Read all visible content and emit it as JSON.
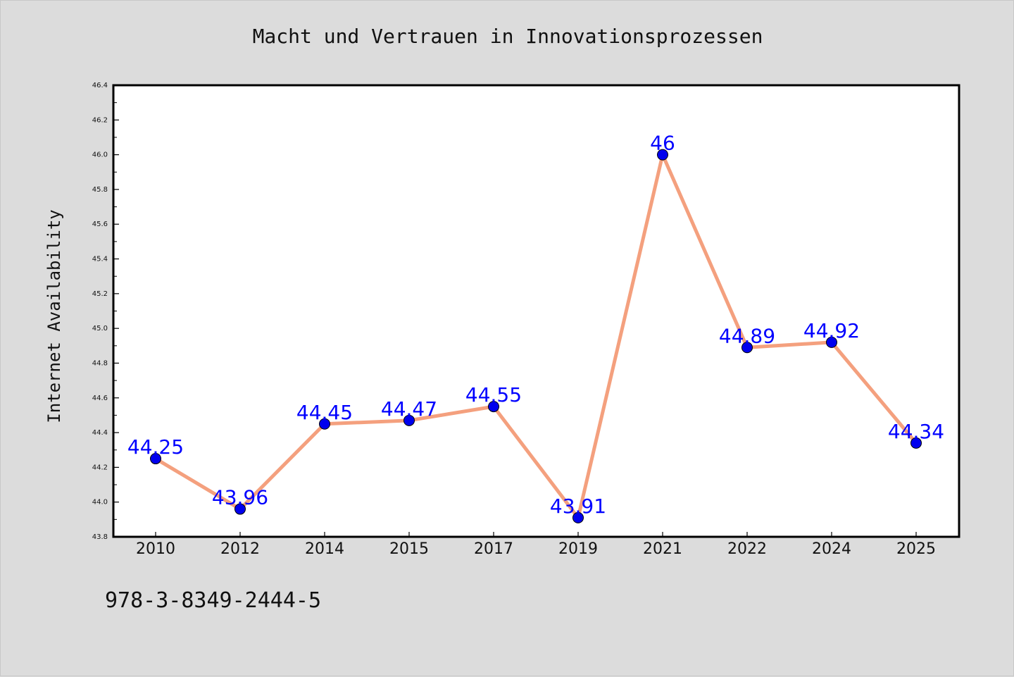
{
  "chart_data": {
    "type": "line",
    "title": "Macht und Vertrauen in Innovationsprozessen",
    "xlabel": "",
    "ylabel": "Internet Availability",
    "categories": [
      "2010",
      "2012",
      "2014",
      "2015",
      "2017",
      "2019",
      "2021",
      "2022",
      "2024",
      "2025"
    ],
    "series": [
      {
        "values": [
          44.25,
          43.96,
          44.45,
          44.47,
          44.55,
          43.91,
          46,
          44.89,
          44.92,
          44.34
        ],
        "labels": [
          "44.25",
          "43.96",
          "44.45",
          "44.47",
          "44.55",
          "43.91",
          "46",
          "44.89",
          "44.92",
          "44.34"
        ]
      }
    ],
    "ylim": [
      43.8,
      46.4
    ],
    "yticks": [
      "43.8",
      "44.0",
      "44.2",
      "44.4",
      "44.6",
      "44.8",
      "45.0",
      "45.2",
      "45.4",
      "45.6",
      "45.8",
      "46.0",
      "46.2",
      "46.4"
    ],
    "grid": false,
    "colors": {
      "line": "#f4a07e",
      "marker": "#0000ee",
      "data_label": "#0000ff",
      "plot_bg": "#ffffff",
      "figure_bg": "#dcdcdc"
    }
  },
  "footer": {
    "isbn": "978-3-8349-2444-5"
  }
}
